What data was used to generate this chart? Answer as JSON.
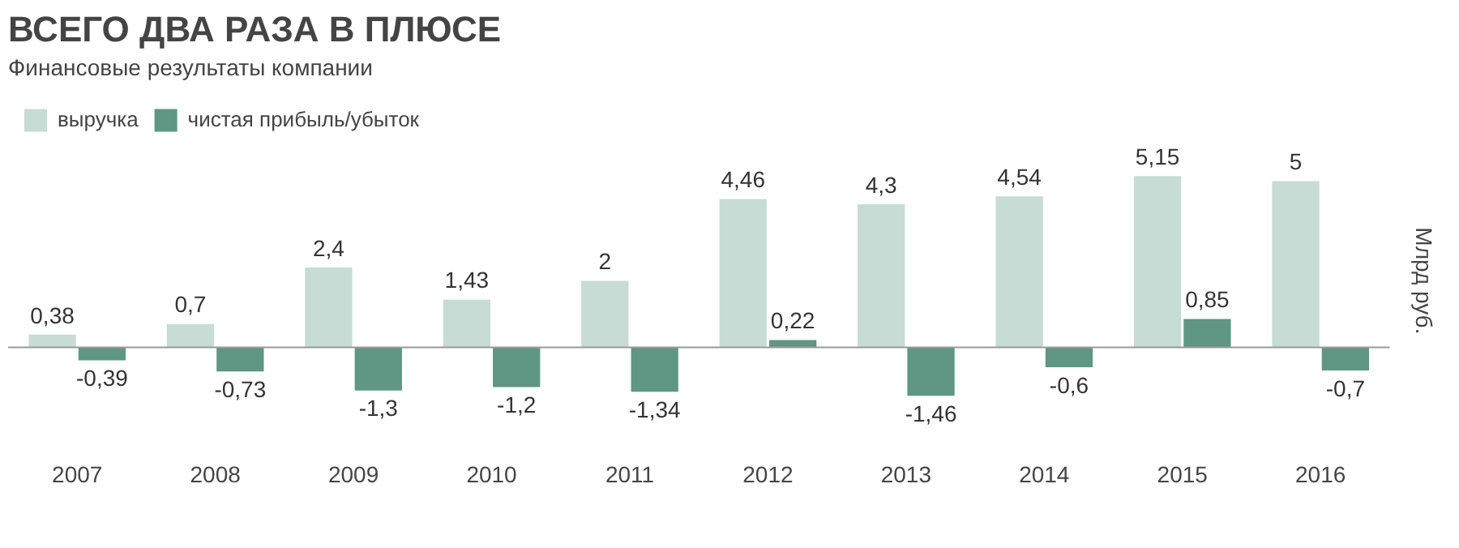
{
  "chart_data": {
    "type": "bar",
    "title": "ВСЕГО ДВА РАЗА В ПЛЮСЕ",
    "subtitle": "Финансовые результаты компании",
    "ylabel": "Млрд руб.",
    "categories": [
      "2007",
      "2008",
      "2009",
      "2010",
      "2011",
      "2012",
      "2013",
      "2014",
      "2015",
      "2016"
    ],
    "series": [
      {
        "name": "выручка",
        "color": "#c6dcd4",
        "values": [
          0.38,
          0.7,
          2.4,
          1.43,
          2,
          4.46,
          4.3,
          4.54,
          5.15,
          5
        ],
        "value_labels": [
          "0,38",
          "0,7",
          "2,4",
          "1,43",
          "2",
          "4,46",
          "4,3",
          "4,54",
          "5,15",
          "5"
        ]
      },
      {
        "name": "чистая прибыль/убыток",
        "color": "#5f9684",
        "values": [
          -0.39,
          -0.73,
          -1.3,
          -1.2,
          -1.34,
          0.22,
          -1.46,
          -0.6,
          0.85,
          -0.7
        ],
        "value_labels": [
          "-0,39",
          "-0,73",
          "-1,3",
          "-1,2",
          "-1,34",
          "0,22",
          "-1,46",
          "-0,6",
          "0,85",
          "-0,7"
        ]
      }
    ],
    "legend": "top left",
    "grid": false,
    "tick_labels": "x"
  }
}
